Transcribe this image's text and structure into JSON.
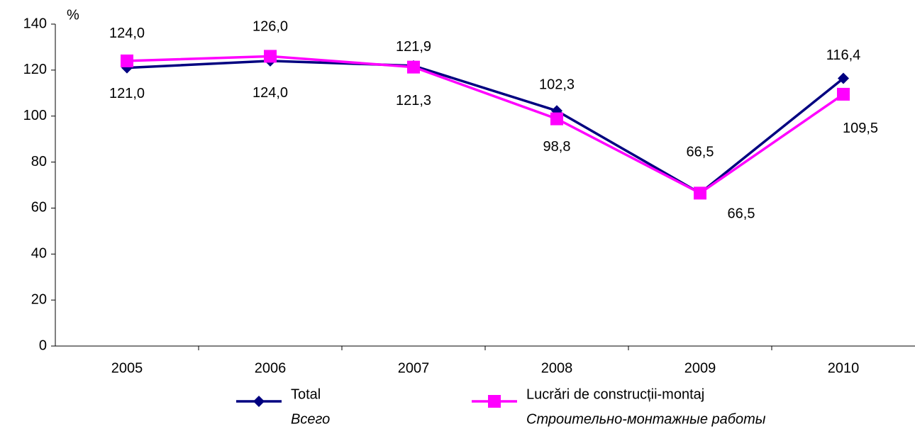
{
  "chart_data": {
    "type": "line",
    "y_unit_label": "%",
    "categories": [
      "2005",
      "2006",
      "2007",
      "2008",
      "2009",
      "2010"
    ],
    "series": [
      {
        "name": "Total",
        "name_alt": "Всего",
        "color": "#000080",
        "marker": "diamond",
        "values": [
          121.0,
          124.0,
          121.9,
          102.3,
          66.5,
          116.4
        ],
        "value_labels": [
          "121,0",
          "124,0",
          "121,9",
          "102,3",
          "66,5",
          "116,4"
        ]
      },
      {
        "name": "Lucrări de construcții-montaj",
        "name_alt": "Строительно-монтажные работы",
        "color": "#ff00ff",
        "marker": "square",
        "values": [
          124.0,
          126.0,
          121.3,
          98.8,
          66.5,
          109.5
        ],
        "value_labels": [
          "124,0",
          "126,0",
          "121,3",
          "98,8",
          "66,5",
          "109,5"
        ]
      }
    ],
    "ylim": [
      0,
      140
    ],
    "yticks": [
      0,
      20,
      40,
      60,
      80,
      100,
      120,
      140
    ],
    "legend": "bottom",
    "grid": false
  }
}
